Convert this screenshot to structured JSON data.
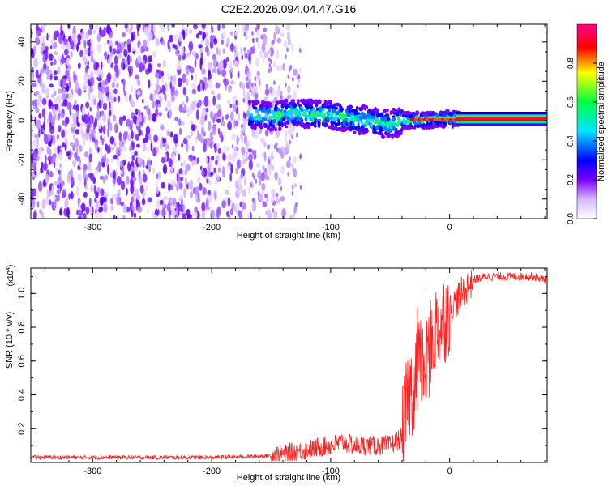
{
  "title": "C2E2.2026.094.04.47.G16",
  "chart_data": [
    {
      "type": "heatmap",
      "title": "C2E2.2026.094.04.47.G16",
      "xlabel": "Height of straight line (km)",
      "ylabel": "Frequency (Hz)",
      "xlim": [
        -352,
        82
      ],
      "ylim": [
        -50,
        49
      ],
      "xticks": [
        -300,
        -200,
        -100,
        0
      ],
      "xtick_labels": [
        "-300",
        "-200",
        "-100",
        "0"
      ],
      "yticks": [
        -40,
        -20,
        0,
        20,
        40
      ],
      "ytick_labels": [
        "-40",
        "-20",
        "0",
        "20",
        "40"
      ],
      "colorbar": {
        "label": "Normalized spectral amplitude",
        "range": [
          0,
          1
        ],
        "ticks": [
          0.0,
          0.2,
          0.4,
          0.6,
          0.8
        ],
        "tick_labels": [
          "0.0",
          "0.2",
          "0.4",
          "0.6",
          "0.8"
        ],
        "colors": [
          "#ffffff",
          "#d4b8ff",
          "#7a00ff",
          "#0000ff",
          "#00e5ff",
          "#00ff44",
          "#ffff00",
          "#ff0000",
          "#ff0088"
        ]
      },
      "noise_region_km": [
        -352,
        -125
      ],
      "signal_track": {
        "x": [
          -168,
          -150,
          -130,
          -110,
          -100,
          -90,
          -80,
          -70,
          -60,
          -50,
          -40,
          -30,
          -20,
          -10,
          0,
          10,
          82
        ],
        "freq": [
          3,
          2,
          4,
          3,
          3,
          2,
          1,
          0,
          -1,
          -2,
          0,
          0,
          0,
          1,
          1,
          1,
          1
        ]
      }
    },
    {
      "type": "line",
      "xlabel": "Height of straight line (km)",
      "ylabel": "SNR (10 * v/v)",
      "y_multiplier": "(x10",
      "y_multiplier_exp": "4",
      "y_multiplier_close": ")",
      "xlim": [
        -352,
        82
      ],
      "ylim": [
        0,
        1.15
      ],
      "xticks": [
        -300,
        -200,
        -100,
        0
      ],
      "xtick_labels": [
        "-300",
        "-200",
        "-100",
        "0"
      ],
      "yticks": [
        0.2,
        0.4,
        0.6,
        0.8,
        1.0
      ],
      "ytick_labels": [
        "0.2",
        "0.4",
        "0.6",
        "0.8",
        "1.0"
      ],
      "color": "#ff2020",
      "series": [
        {
          "name": "SNR",
          "x": [
            -352,
            -300,
            -250,
            -200,
            -170,
            -150,
            -130,
            -110,
            -100,
            -90,
            -80,
            -70,
            -60,
            -50,
            -40,
            -35,
            -30,
            -25,
            -20,
            -15,
            -10,
            -5,
            0,
            10,
            20,
            30,
            40,
            50,
            60,
            70,
            82
          ],
          "values": [
            0.03,
            0.03,
            0.03,
            0.03,
            0.035,
            0.04,
            0.06,
            0.09,
            0.1,
            0.12,
            0.1,
            0.1,
            0.1,
            0.1,
            0.15,
            0.4,
            0.45,
            0.6,
            0.55,
            0.72,
            0.82,
            0.85,
            0.9,
            1.0,
            1.08,
            1.1,
            1.1,
            1.1,
            1.1,
            1.1,
            1.08
          ]
        }
      ]
    }
  ]
}
